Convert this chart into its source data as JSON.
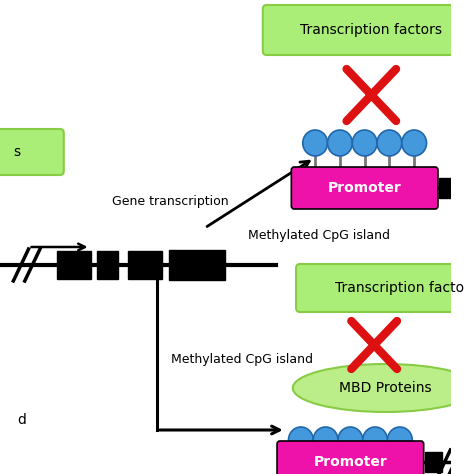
{
  "bg_color": "#ffffff",
  "green_box_color": "#aaee77",
  "green_box_edge": "#88cc44",
  "green_ellipse_color": "#bbee88",
  "magenta_color": "#ee11aa",
  "blue_circle_color": "#4499dd",
  "blue_circle_edge": "#2266aa",
  "black_color": "#111111",
  "red_color": "#dd1111",
  "gray_stem_color": "#777777",
  "text_transcription_factors": "Transcription factors",
  "text_transcription_factors2": "Transcription facto",
  "text_gene_transcription": "Gene transcription",
  "text_methylated_cpg1": "Methylated CpG island",
  "text_methylated_cpg2": "Methylated CpG island",
  "text_promoter": "Promoter",
  "text_promoter2": "Promoter",
  "text_mbd": "MBD Proteins",
  "text_s": "s",
  "text_d": "d"
}
